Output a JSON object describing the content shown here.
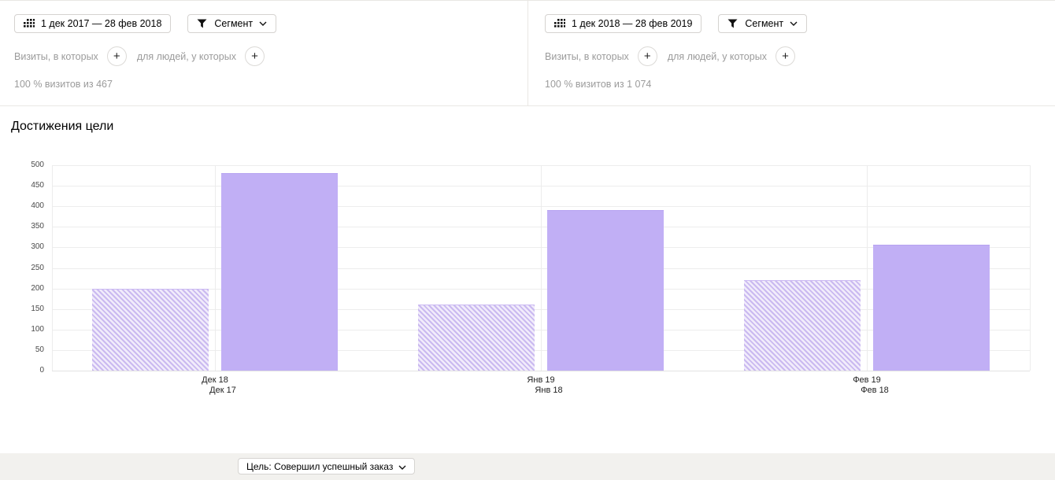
{
  "panels": [
    {
      "date_range": "1 дек 2017 — 28 фев 2018",
      "segment_label": "Сегмент",
      "visits_filter_label": "Визиты, в которых",
      "people_filter_label": "для людей, у которых",
      "plus_glyph": "+",
      "sample_text": "100 % визитов из 467"
    },
    {
      "date_range": "1 дек 2018 — 28 фев 2019",
      "segment_label": "Сегмент",
      "visits_filter_label": "Визиты, в которых",
      "people_filter_label": "для людей, у которых",
      "plus_glyph": "+",
      "sample_text": "100 % визитов из 1 074"
    }
  ],
  "chart": {
    "title": "Достижения цели"
  },
  "chart_data": {
    "type": "bar",
    "title": "Достижения цели",
    "categories": [
      "Декабрь",
      "Январь",
      "Февраль"
    ],
    "series": [
      {
        "name": "1 дек 2017 — 28 фев 2018",
        "style": "hatched",
        "tick_labels": [
          "Дек 17",
          "Янв 18",
          "Фев 18"
        ],
        "values": [
          200,
          160,
          220
        ]
      },
      {
        "name": "1 дек 2018 — 28 фев 2019",
        "style": "solid",
        "tick_labels": [
          "Дек 18",
          "Янв 19",
          "Фев 19"
        ],
        "values": [
          480,
          390,
          307
        ]
      }
    ],
    "ylim": [
      0,
      500
    ],
    "ytick_step": 50,
    "grid": true,
    "legend_position": "none",
    "colors": {
      "solid": "#c1aff5",
      "hatch_stripe": "#cab9f0",
      "hatch_bg": "#f1ecfb"
    }
  },
  "footer": {
    "goal_button_label": "Цель: Совершил успешный заказ"
  }
}
